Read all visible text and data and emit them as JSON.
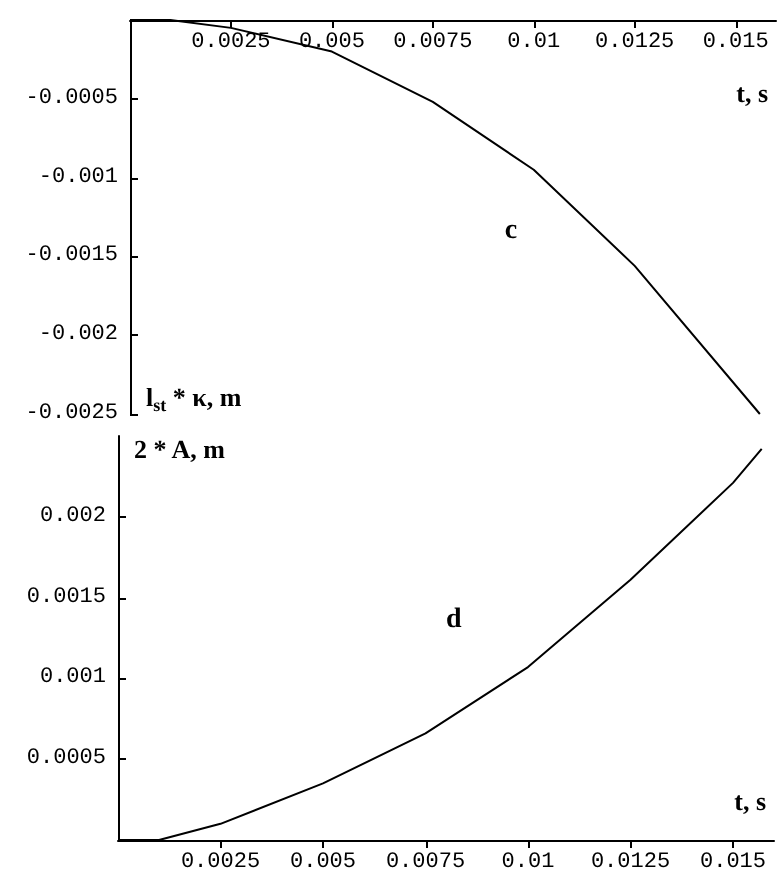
{
  "chart_data": [
    {
      "type": "line",
      "xlabel": "t, s",
      "ylabel": "l$_{st}$ * κ, m",
      "annotations": [
        "c"
      ],
      "x": [
        0,
        0.001,
        0.0025,
        0.005,
        0.0075,
        0.01,
        0.0125,
        0.0156
      ],
      "series": [
        {
          "color": "#000000",
          "values": [
            0,
            0,
            -5e-05,
            -0.0002,
            -0.00052,
            -0.00095,
            -0.00156,
            -0.0025
          ]
        }
      ],
      "xlim": [
        0,
        0.016
      ],
      "xticks": [
        0.0025,
        0.005,
        0.0075,
        0.01,
        0.0125,
        0.015
      ],
      "ylim": [
        -0.0025,
        0
      ],
      "yticks": [
        -0.0025,
        -0.002,
        -0.0015,
        -0.001,
        -0.0005
      ],
      "grid": false,
      "marker": "none",
      "line_style": "solid"
    },
    {
      "type": "line",
      "xlabel": "t, s",
      "ylabel": "2 * A, m",
      "annotations": [
        "d"
      ],
      "x": [
        0,
        0.001,
        0.0025,
        0.005,
        0.0075,
        0.01,
        0.0125,
        0.015,
        0.0157
      ],
      "series": [
        {
          "color": "#000000",
          "values": [
            0,
            0,
            0.0001,
            0.00035,
            0.00066,
            0.00107,
            0.00161,
            0.00221,
            0.00242
          ]
        }
      ],
      "xlim": [
        0,
        0.016
      ],
      "xticks": [
        0.0025,
        0.005,
        0.0075,
        0.01,
        0.0125,
        0.015
      ],
      "ylim": [
        0,
        0.0025
      ],
      "yticks": [
        0.0005,
        0.001,
        0.0015,
        0.002
      ],
      "grid": false,
      "marker": "none",
      "line_style": "solid"
    }
  ]
}
